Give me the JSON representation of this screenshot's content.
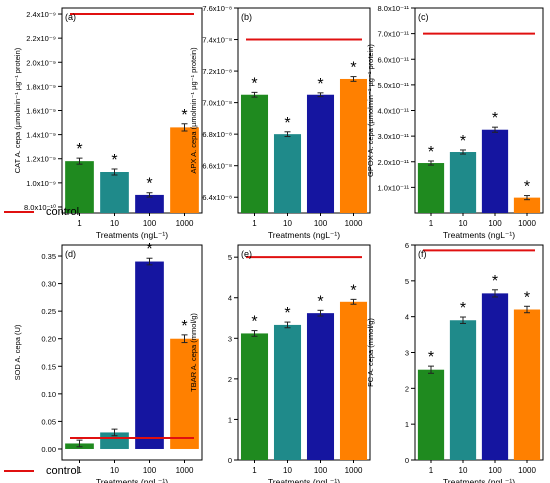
{
  "colors": {
    "bars": [
      "#1f8a1f",
      "#1f8a8a",
      "#1515a0",
      "#ff8000"
    ],
    "control": "#e01010",
    "asterisk": "#000000"
  },
  "legend": {
    "label": "control"
  },
  "chart_data": [
    {
      "type": "bar",
      "panel": "(a)",
      "categories": [
        "1",
        "10",
        "100",
        "1000"
      ],
      "values": [
        1.18e-09,
        1.09e-09,
        9e-10,
        1.46e-09
      ],
      "errors": [
        2.5e-11,
        2.5e-11,
        1.8e-11,
        3e-11
      ],
      "significant": [
        true,
        true,
        true,
        true
      ],
      "control": 2.4e-09,
      "ylim": [
        7.5e-10,
        2.45e-09
      ],
      "ticks": [
        8e-10,
        1e-09,
        1.2e-09,
        1.4e-09,
        1.6e-09,
        1.8e-09,
        2e-09,
        2.2e-09,
        2.4e-09
      ],
      "tick_labels": [
        "8.0x10⁻¹⁰",
        "1.0x10⁻⁹",
        "1.2x10⁻⁹",
        "1.4x10⁻⁹",
        "1.6x10⁻⁹",
        "1.8x10⁻⁹",
        "2.0x10⁻⁹",
        "2.2x10⁻⁹",
        "2.4x10⁻⁹"
      ],
      "ylabel": "CAT A. cepa (µmolmin⁻¹ µg⁻¹ protein)",
      "xlabel": "Treatments (ngL⁻¹)"
    },
    {
      "type": "bar",
      "panel": "(b)",
      "categories": [
        "1",
        "10",
        "100",
        "1000"
      ],
      "values": [
        7.05e-08,
        6.8e-08,
        7.05e-08,
        7.15e-08
      ],
      "errors": [
        1.5e-10,
        1.5e-10,
        1.2e-10,
        1.5e-10
      ],
      "significant": [
        true,
        true,
        true,
        true
      ],
      "control": 7.4e-08,
      "ylim": [
        6.3e-08,
        7.6e-08
      ],
      "ticks": [
        6.4e-08,
        6.6e-08,
        6.8e-08,
        7e-08,
        7.2e-08,
        7.4e-08,
        7.6e-08
      ],
      "tick_labels": [
        "6.4x10⁻⁸",
        "6.6x10⁻⁸",
        "6.8x10⁻⁸",
        "7.0x10⁻⁸",
        "7.2x10⁻⁸",
        "7.4x10⁻⁸",
        "7.6x10⁻⁸"
      ],
      "ylabel": "APX A. cepa (µmolmin⁻¹ µg⁻¹ protein)",
      "xlabel": "Treatments (ngL⁻¹)"
    },
    {
      "type": "bar",
      "panel": "(c)",
      "categories": [
        "1",
        "10",
        "100",
        "1000"
      ],
      "values": [
        1.95e-11,
        2.38e-11,
        3.25e-11,
        6e-12
      ],
      "errors": [
        8e-13,
        8e-13,
        1e-12,
        8e-13
      ],
      "significant": [
        true,
        true,
        true,
        true
      ],
      "control": 7e-11,
      "ylim": [
        0,
        8e-11
      ],
      "ticks": [
        1e-11,
        2e-11,
        3e-11,
        4e-11,
        5e-11,
        6e-11,
        7e-11,
        8e-11
      ],
      "tick_labels": [
        "1.0x10⁻¹¹",
        "2.0x10⁻¹¹",
        "3.0x10⁻¹¹",
        "4.0x10⁻¹¹",
        "5.0x10⁻¹¹",
        "6.0x10⁻¹¹",
        "7.0x10⁻¹¹",
        "8.0x10⁻¹¹"
      ],
      "ylabel": "GPOX A. cepa (µmolmin⁻¹ µg⁻¹ protein)",
      "xlabel": "Treatments (ngL⁻¹)"
    },
    {
      "type": "bar",
      "panel": "(d)",
      "categories": [
        "1",
        "10",
        "100",
        "1000"
      ],
      "values": [
        0.01,
        0.03,
        0.34,
        0.2
      ],
      "errors": [
        0.006,
        0.006,
        0.006,
        0.007
      ],
      "significant": [
        false,
        false,
        true,
        true
      ],
      "control": 0.02,
      "ylim": [
        -0.02,
        0.37
      ],
      "ticks": [
        0.0,
        0.05,
        0.1,
        0.15,
        0.2,
        0.25,
        0.3,
        0.35
      ],
      "tick_labels": [
        "0.00",
        "0.05",
        "0.10",
        "0.15",
        "0.20",
        "0.25",
        "0.30",
        "0.35"
      ],
      "ylabel": "SOD A. cepa (U)",
      "xlabel": "Treatments (ngL⁻¹)"
    },
    {
      "type": "bar",
      "panel": "(e)",
      "categories": [
        "1",
        "10",
        "100",
        "1000"
      ],
      "values": [
        3.12,
        3.33,
        3.62,
        3.9
      ],
      "errors": [
        0.07,
        0.07,
        0.07,
        0.06
      ],
      "significant": [
        true,
        true,
        true,
        true
      ],
      "control": 5.0,
      "ylim": [
        0,
        5.3
      ],
      "ticks": [
        0,
        1,
        2,
        3,
        4,
        5
      ],
      "tick_labels": [
        "0",
        "1",
        "2",
        "3",
        "4",
        "5"
      ],
      "ylabel": "TBAR A. cepa (mmol/g)",
      "xlabel": "Treatments (ngL⁻¹)"
    },
    {
      "type": "bar",
      "panel": "(f)",
      "categories": [
        "1",
        "10",
        "100",
        "1000"
      ],
      "values": [
        2.52,
        3.9,
        4.65,
        4.2
      ],
      "errors": [
        0.1,
        0.09,
        0.1,
        0.09
      ],
      "significant": [
        true,
        true,
        true,
        true
      ],
      "control": 5.85,
      "ylim": [
        0,
        6
      ],
      "ticks": [
        0,
        1,
        2,
        3,
        4,
        5,
        6
      ],
      "tick_labels": [
        "0",
        "1",
        "2",
        "3",
        "4",
        "5",
        "6"
      ],
      "ylabel": "FC A. cepa (mmol/g)",
      "xlabel": "Treatments (ngL⁻¹)"
    }
  ]
}
